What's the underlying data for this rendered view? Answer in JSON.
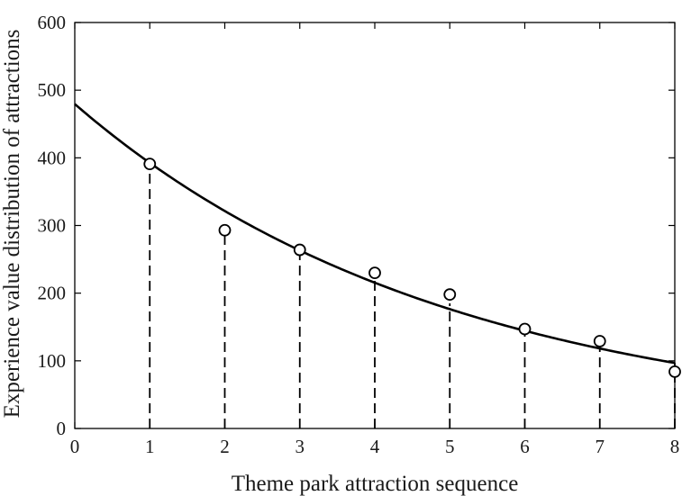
{
  "chart_data": {
    "type": "scatter",
    "title": "",
    "xlabel": "Theme park attraction sequence",
    "ylabel": "Experience value distribution of attractions",
    "xlim": [
      0,
      8
    ],
    "ylim": [
      0,
      600
    ],
    "xticks": [
      "0",
      "1",
      "2",
      "3",
      "4",
      "5",
      "6",
      "7",
      "8"
    ],
    "yticks": [
      "0",
      "100",
      "200",
      "300",
      "400",
      "500",
      "600"
    ],
    "grid": false,
    "legend": "none",
    "points": {
      "x": [
        1,
        2,
        3,
        4,
        5,
        6,
        7,
        8
      ],
      "y": [
        391,
        293,
        264,
        230,
        198,
        147,
        129,
        84
      ]
    },
    "stems": {
      "x": [
        1,
        2,
        3,
        4,
        5,
        6,
        7,
        8
      ],
      "y": [
        391,
        293,
        264,
        222,
        185,
        148,
        123,
        97
      ]
    },
    "fit_curve": {
      "type": "exponential",
      "a": 479.5,
      "b": -0.2,
      "x_range": [
        0,
        8
      ]
    },
    "colors": {
      "line": "#000000",
      "marker_fill": "#ffffff",
      "marker_stroke": "#000000"
    }
  }
}
